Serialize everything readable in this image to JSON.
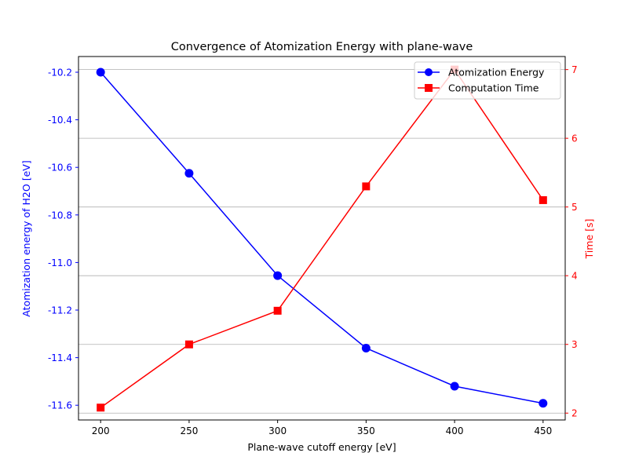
{
  "chart_data": {
    "type": "line",
    "title": "Convergence of Atomization Energy with plane-wave",
    "xlabel": "Plane-wave cutoff energy [eV]",
    "ylabel_left": "Atomization energy of H2O [eV]",
    "ylabel_right": "Time [s]",
    "x": [
      200,
      250,
      300,
      350,
      400,
      450
    ],
    "xlim": [
      187.5,
      462.5
    ],
    "xticks": [
      "200",
      "250",
      "300",
      "350",
      "400",
      "450"
    ],
    "ylim_left": [
      -11.662,
      -10.134
    ],
    "yticks_left": [
      "-10.2",
      "-10.4",
      "-10.6",
      "-10.8",
      "-11.0",
      "-11.2",
      "-11.4",
      "-11.6"
    ],
    "yticks_left_values": [
      -10.2,
      -10.4,
      -10.6,
      -10.8,
      -11.0,
      -11.2,
      -11.4,
      -11.6
    ],
    "ylim_right": [
      1.9,
      7.19
    ],
    "yticks_right": [
      "2",
      "3",
      "4",
      "5",
      "6",
      "7"
    ],
    "yticks_right_values": [
      2,
      3,
      4,
      5,
      6,
      7
    ],
    "grid": "horizontal lines at right-axis ticks",
    "legend_position": "top-right",
    "series": [
      {
        "name": "Atomization Energy",
        "axis": "left",
        "color": "#0000ff",
        "marker": "circle",
        "values": [
          -10.2,
          -10.625,
          -11.055,
          -11.36,
          -11.52,
          -11.592
        ]
      },
      {
        "name": "Computation Time",
        "axis": "right",
        "color": "#ff0000",
        "marker": "square",
        "values": [
          2.08,
          3.0,
          3.49,
          5.3,
          7.0,
          5.1
        ]
      }
    ]
  }
}
